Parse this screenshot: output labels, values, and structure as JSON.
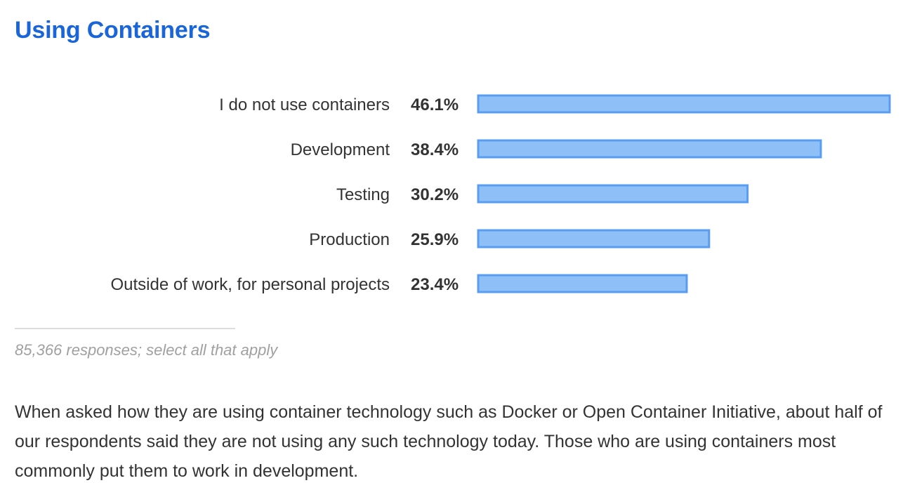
{
  "title": "Using Containers",
  "chart_data": {
    "type": "bar",
    "orientation": "horizontal",
    "categories": [
      "I do not use containers",
      "Development",
      "Testing",
      "Production",
      "Outside of work, for personal projects"
    ],
    "values": [
      46.1,
      38.4,
      30.2,
      25.9,
      23.4
    ],
    "value_labels": [
      "46.1%",
      "38.4%",
      "30.2%",
      "25.9%",
      "23.4%"
    ],
    "unit": "%",
    "xlim": [
      0,
      46.1
    ],
    "grid": false,
    "legend": "none",
    "colors": {
      "bar_fill": "#8fbff7",
      "bar_stroke": "#5a9cf0"
    }
  },
  "footnote": "85,366 responses; select all that apply",
  "body": "When asked how they are using container technology such as Docker or Open Container Initiative, about half of our respondents said they are not using any such technology today. Those who are using containers most commonly put them to work in development.",
  "colors": {
    "title": "#1a66d9",
    "text": "#333333",
    "muted": "#a0a0a0"
  }
}
